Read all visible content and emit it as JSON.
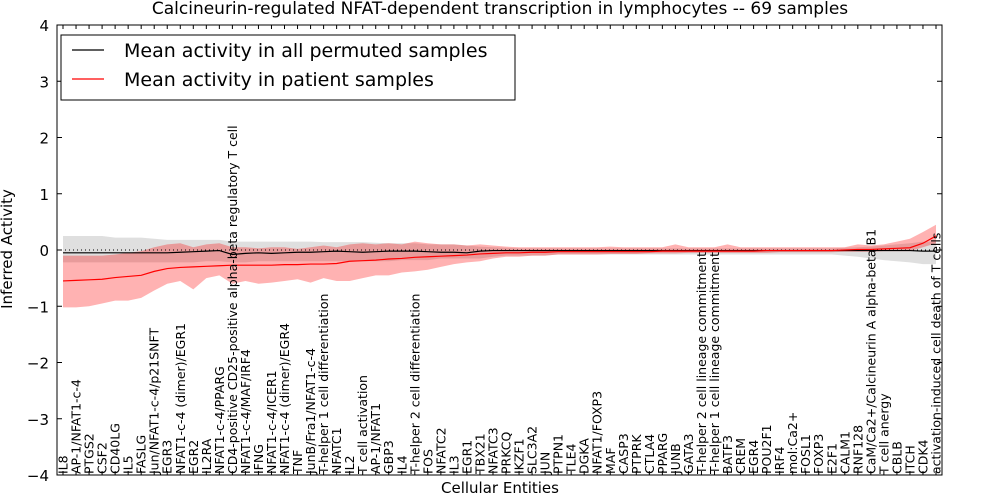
{
  "chart_data": {
    "type": "line",
    "title": "Calcineurin-regulated NFAT-dependent transcription in lymphocytes -- 69 samples",
    "xlabel": "Cellular Entities",
    "ylabel": "Inferred Activity",
    "ylim": [
      -4,
      4
    ],
    "yticks": [
      -4,
      -3,
      -2,
      -1,
      0,
      1,
      2,
      3,
      4
    ],
    "legend_position": "top-left",
    "categories": [
      "IL8",
      "AP-1/NFAT1-c-4",
      "PTGS2",
      "CSF2",
      "CD40LG",
      "IL5",
      "FASLG",
      "Jun/NFAT1-c-4/p21SNFT",
      "EGR3",
      "NFAT1-c-4 (dimer)/EGR1",
      "EGR2",
      "IL2RA",
      "NFAT1-c-4/PPARG",
      "CD4-positive CD25-positive alpha-beta regulatory T cell",
      "NFAT1-c-4/MAF/IRF4",
      "IFNG",
      "NFAT1-c-4/ICER1",
      "NFAT1-c-4 (dimer)/EGR4",
      "TNF",
      "JunB/Fra1/NFAT1-c-4",
      "T-helper 1 cell differentiation",
      "NFATC1",
      "IL2",
      "T cell activation",
      "AP-1/NFAT1",
      "GBP3",
      "IL4",
      "T-helper 2 cell differentiation",
      "FOS",
      "NFATC2",
      "IL3",
      "EGR1",
      "TBX21",
      "NFATC3",
      "PRKCQ",
      "IKZF1",
      "SLC3A2",
      "JUN",
      "PTPN1",
      "TLE4",
      "DGKA",
      "NFAT1/FOXP3",
      "MAF",
      "CASP3",
      "PTPRK",
      "CTLA4",
      "PPARG",
      "JUNB",
      "GATA3",
      "T-helper 2 cell lineage commitment",
      "T-helper 1 cell lineage commitment",
      "BATF3",
      "CREM",
      "EGR4",
      "POU2F1",
      "IRF4",
      "mol:Ca2+",
      "FOSL1",
      "FOXP3",
      "E2F1",
      "CALM1",
      "RNF128",
      "CaM/Ca2+/Calcineurin A alpha-beta B1",
      "T cell anergy",
      "CBLB",
      "ITCH",
      "CDK4",
      "activation-induced cell death of T cells"
    ],
    "series": [
      {
        "name": "Mean activity in all permuted samples",
        "color": "#000000",
        "values": [
          -0.05,
          -0.05,
          -0.05,
          -0.05,
          -0.05,
          -0.05,
          -0.05,
          -0.05,
          -0.05,
          -0.04,
          -0.03,
          -0.02,
          -0.01,
          -0.08,
          -0.06,
          -0.05,
          -0.06,
          -0.05,
          -0.04,
          -0.04,
          -0.03,
          -0.02,
          -0.03,
          -0.04,
          -0.03,
          -0.02,
          -0.02,
          -0.02,
          -0.03,
          -0.04,
          -0.04,
          -0.05,
          -0.02,
          -0.01,
          -0.01,
          -0.01,
          -0.01,
          -0.01,
          -0.01,
          -0.01,
          -0.01,
          -0.01,
          -0.01,
          -0.01,
          -0.01,
          -0.01,
          -0.01,
          -0.01,
          -0.01,
          -0.01,
          -0.01,
          -0.01,
          -0.01,
          -0.01,
          -0.01,
          -0.01,
          -0.01,
          -0.01,
          -0.01,
          -0.01,
          -0.01,
          -0.01,
          -0.01,
          -0.01,
          -0.01,
          -0.01,
          -0.02,
          -0.02
        ],
        "lower": [
          -0.22,
          -0.22,
          -0.22,
          -0.22,
          -0.22,
          -0.22,
          -0.22,
          -0.22,
          -0.22,
          -0.22,
          -0.22,
          -0.2,
          -0.2,
          -0.22,
          -0.22,
          -0.2,
          -0.2,
          -0.2,
          -0.2,
          -0.2,
          -0.2,
          -0.2,
          -0.2,
          -0.2,
          -0.2,
          -0.2,
          -0.18,
          -0.18,
          -0.18,
          -0.15,
          -0.15,
          -0.15,
          -0.15,
          -0.12,
          -0.1,
          -0.1,
          -0.1,
          -0.1,
          -0.08,
          -0.08,
          -0.08,
          -0.08,
          -0.08,
          -0.08,
          -0.08,
          -0.08,
          -0.08,
          -0.08,
          -0.08,
          -0.08,
          -0.08,
          -0.08,
          -0.08,
          -0.08,
          -0.08,
          -0.08,
          -0.08,
          -0.08,
          -0.08,
          -0.08,
          -0.1,
          -0.12,
          -0.15,
          -0.18,
          -0.2,
          -0.22,
          -0.25,
          -0.25
        ],
        "upper": [
          0.25,
          0.25,
          0.25,
          0.25,
          0.22,
          0.22,
          0.22,
          0.2,
          0.18,
          0.18,
          0.18,
          0.18,
          0.18,
          0.15,
          0.15,
          0.15,
          0.15,
          0.15,
          0.15,
          0.15,
          0.14,
          0.14,
          0.14,
          0.14,
          0.13,
          0.12,
          0.12,
          0.12,
          0.1,
          0.1,
          0.1,
          0.08,
          0.06,
          0.05,
          0.04,
          0.03,
          0.03,
          0.03,
          0.03,
          0.03,
          0.03,
          0.03,
          0.03,
          0.03,
          0.03,
          0.03,
          0.03,
          0.03,
          0.03,
          0.03,
          0.03,
          0.03,
          0.03,
          0.03,
          0.03,
          0.03,
          0.03,
          0.03,
          0.03,
          0.03,
          0.04,
          0.05,
          0.06,
          0.08,
          0.1,
          0.12,
          0.15,
          0.15
        ]
      },
      {
        "name": "Mean activity in patient samples",
        "color": "#ff0000",
        "values": [
          -0.55,
          -0.54,
          -0.53,
          -0.52,
          -0.49,
          -0.47,
          -0.45,
          -0.38,
          -0.33,
          -0.31,
          -0.3,
          -0.29,
          -0.28,
          -0.27,
          -0.27,
          -0.27,
          -0.27,
          -0.26,
          -0.26,
          -0.25,
          -0.25,
          -0.24,
          -0.2,
          -0.19,
          -0.18,
          -0.16,
          -0.15,
          -0.13,
          -0.12,
          -0.11,
          -0.1,
          -0.09,
          -0.07,
          -0.06,
          -0.05,
          -0.05,
          -0.04,
          -0.04,
          -0.03,
          -0.03,
          -0.03,
          -0.03,
          -0.03,
          -0.03,
          -0.03,
          -0.03,
          -0.02,
          -0.02,
          -0.02,
          -0.02,
          -0.02,
          -0.02,
          -0.02,
          -0.02,
          -0.01,
          -0.01,
          -0.01,
          -0.01,
          -0.01,
          -0.01,
          0.0,
          0.01,
          0.01,
          0.02,
          0.03,
          0.04,
          0.12,
          0.25
        ],
        "lower": [
          -1.02,
          -1.02,
          -1.0,
          -0.95,
          -0.9,
          -0.9,
          -0.85,
          -0.72,
          -0.6,
          -0.55,
          -0.7,
          -0.5,
          -0.45,
          -0.6,
          -0.55,
          -0.6,
          -0.58,
          -0.55,
          -0.52,
          -0.58,
          -0.5,
          -0.55,
          -0.55,
          -0.5,
          -0.45,
          -0.45,
          -0.4,
          -0.38,
          -0.35,
          -0.3,
          -0.25,
          -0.22,
          -0.2,
          -0.15,
          -0.12,
          -0.12,
          -0.1,
          -0.1,
          -0.08,
          -0.08,
          -0.08,
          -0.08,
          -0.07,
          -0.07,
          -0.07,
          -0.06,
          -0.06,
          -0.06,
          -0.05,
          -0.05,
          -0.05,
          -0.05,
          -0.05,
          -0.05,
          -0.05,
          -0.04,
          -0.04,
          -0.04,
          -0.04,
          -0.04,
          -0.03,
          -0.03,
          -0.03,
          -0.02,
          -0.02,
          -0.02,
          0.05,
          0.12
        ],
        "upper": [
          -0.1,
          -0.1,
          -0.1,
          -0.1,
          -0.08,
          -0.05,
          -0.02,
          0.05,
          0.1,
          0.12,
          0.05,
          0.1,
          0.12,
          0.05,
          0.05,
          0.03,
          0.05,
          0.05,
          0.02,
          0.05,
          0.08,
          0.05,
          0.1,
          0.12,
          0.1,
          0.12,
          0.1,
          0.15,
          0.12,
          0.1,
          0.1,
          0.08,
          0.1,
          0.08,
          0.06,
          0.05,
          0.05,
          0.05,
          0.05,
          0.05,
          0.05,
          0.05,
          0.06,
          0.05,
          0.05,
          0.05,
          0.05,
          0.1,
          0.05,
          0.05,
          0.05,
          0.1,
          0.05,
          0.05,
          0.05,
          0.05,
          0.05,
          0.05,
          0.05,
          0.05,
          0.05,
          0.1,
          0.08,
          0.1,
          0.15,
          0.2,
          0.32,
          0.45
        ]
      }
    ]
  }
}
